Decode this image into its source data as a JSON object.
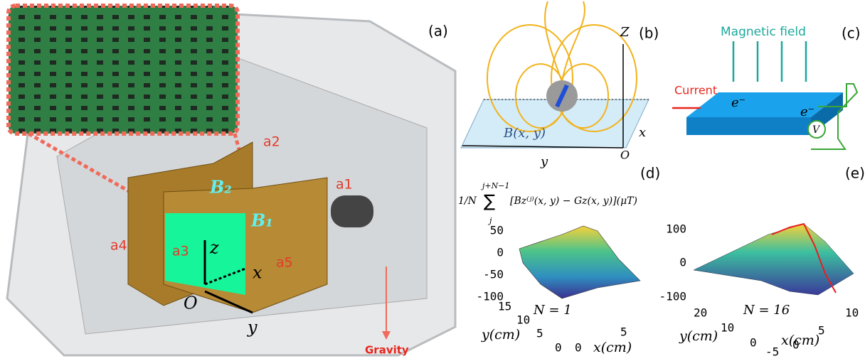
{
  "panel_a": {
    "label": "(a)",
    "parts": [
      "a1",
      "a2",
      "a3",
      "a4",
      "a5"
    ],
    "fields": [
      "B₂",
      "B₁"
    ],
    "axes": {
      "z": "z",
      "x": "x",
      "origin": "O",
      "y": "y"
    },
    "gravity": "Gravity"
  },
  "panel_b": {
    "label": "(b)",
    "field": "B(x, y)",
    "axes": {
      "z": "Z",
      "x": "x",
      "origin": "O",
      "y": "y"
    }
  },
  "panel_c": {
    "label": "(c)",
    "magnetic_field": "Magnetic field",
    "current": "Current",
    "electrons": [
      "e⁻",
      "e⁻"
    ],
    "voltmeter": "V"
  },
  "panel_d": {
    "label": "(d)",
    "formula": {
      "lead": "1/N",
      "upper": "j+N−1",
      "sum": "∑",
      "lower": "j",
      "body": "[Bz⁽ʲ⁾(x, y) − Gz(x, y)](μT)"
    },
    "z_ticks": [
      "50",
      "0",
      "-50",
      "-100"
    ],
    "y_ticks": [
      "15",
      "10",
      "5",
      "0"
    ],
    "x_ticks": [
      "0",
      "5"
    ],
    "y_label": "y(cm)",
    "x_label": "x(cm)",
    "note": "N = 1"
  },
  "panel_e": {
    "label": "(e)",
    "z_ticks": [
      "100",
      "0",
      "-100"
    ],
    "y_ticks": [
      "20",
      "10",
      "0"
    ],
    "x_ticks": [
      "-5",
      "0",
      "5",
      "10"
    ],
    "y_label": "y(cm)",
    "x_label": "x(cm)",
    "note": "N = 16"
  }
}
